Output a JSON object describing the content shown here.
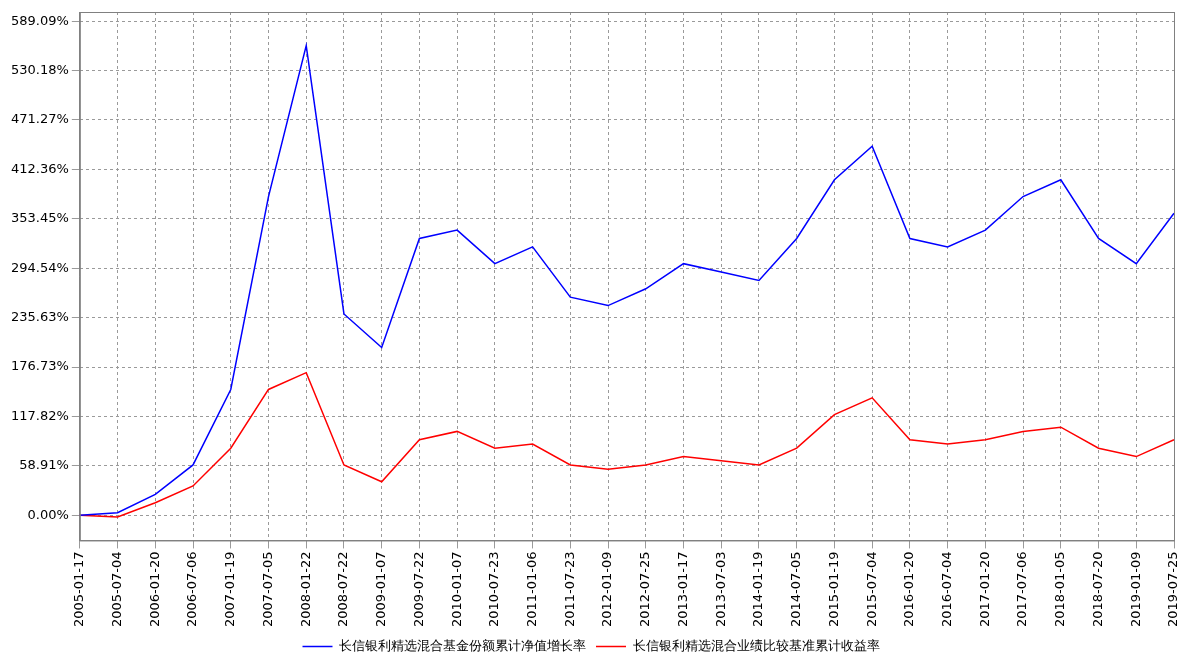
{
  "chart_data": {
    "type": "line",
    "categories": [
      "2005-01-17",
      "2005-07-04",
      "2006-01-20",
      "2006-07-06",
      "2007-01-19",
      "2007-07-05",
      "2008-01-22",
      "2008-07-22",
      "2009-01-07",
      "2009-07-22",
      "2010-01-07",
      "2010-07-23",
      "2011-01-06",
      "2011-07-23",
      "2012-01-09",
      "2012-07-25",
      "2013-01-17",
      "2013-07-03",
      "2014-01-19",
      "2014-07-05",
      "2015-01-19",
      "2015-07-04",
      "2016-01-20",
      "2016-07-04",
      "2017-01-20",
      "2017-07-06",
      "2018-01-05",
      "2018-07-20",
      "2019-01-09",
      "2019-07-25"
    ],
    "series": [
      {
        "name": "长信银利精选混合基金份额累计净值增长率",
        "color": "#0000ff",
        "values": [
          0,
          3,
          25,
          60,
          150,
          380,
          560,
          240,
          200,
          330,
          340,
          300,
          320,
          260,
          250,
          270,
          300,
          290,
          280,
          330,
          400,
          440,
          330,
          320,
          340,
          380,
          400,
          330,
          300,
          360
        ]
      },
      {
        "name": "长信银利精选混合业绩比较基准累计收益率",
        "color": "#ff0000",
        "values": [
          0,
          -2,
          15,
          35,
          80,
          150,
          170,
          60,
          40,
          90,
          100,
          80,
          85,
          60,
          55,
          60,
          70,
          65,
          60,
          80,
          120,
          140,
          90,
          85,
          90,
          100,
          105,
          80,
          70,
          90
        ]
      }
    ],
    "ylim": [
      -30,
      600
    ],
    "yticks": [
      {
        "value": 0,
        "label": "0.00%"
      },
      {
        "value": 58.91,
        "label": "58.91%"
      },
      {
        "value": 117.82,
        "label": "117.82%"
      },
      {
        "value": 176.73,
        "label": "176.73%"
      },
      {
        "value": 235.63,
        "label": "235.63%"
      },
      {
        "value": 294.54,
        "label": "294.54%"
      },
      {
        "value": 353.45,
        "label": "353.45%"
      },
      {
        "value": 412.36,
        "label": "412.36%"
      },
      {
        "value": 471.27,
        "label": "471.27%"
      },
      {
        "value": 530.18,
        "label": "530.18%"
      },
      {
        "value": 589.09,
        "label": "589.09%"
      }
    ],
    "grid": true,
    "legend": "bottom"
  }
}
